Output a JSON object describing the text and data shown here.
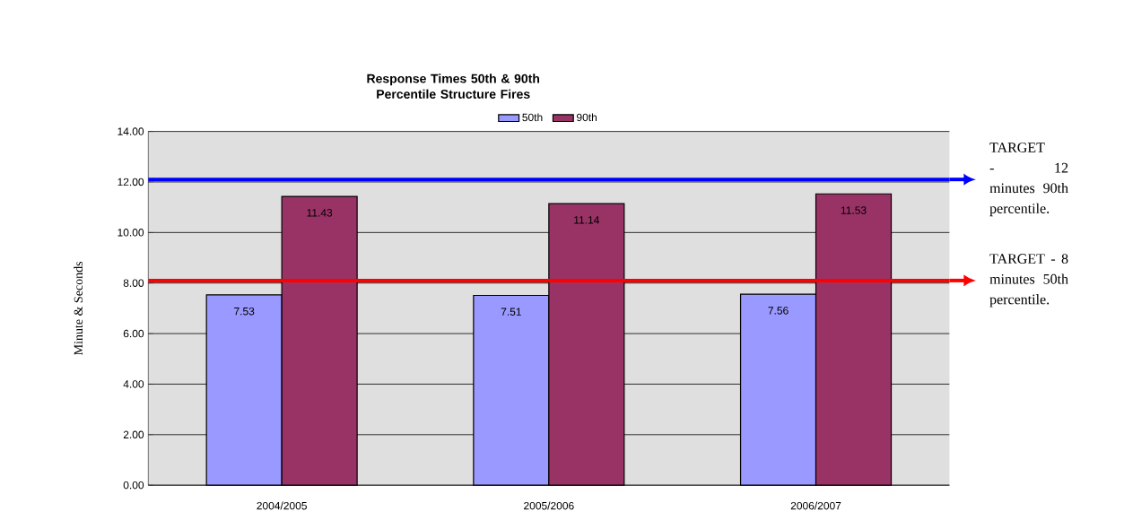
{
  "chart_data": {
    "type": "bar",
    "title": "Response Times 50th & 90th Percentile Structure Fires",
    "ylabel": "Minute & Seconds",
    "categories": [
      "2004/2005",
      "2005/2006",
      "2006/2007"
    ],
    "series": [
      {
        "name": "50th",
        "color": "#9999ff",
        "values": [
          7.53,
          7.51,
          7.56
        ]
      },
      {
        "name": "90th",
        "color": "#993366",
        "values": [
          11.43,
          11.14,
          11.53
        ]
      }
    ],
    "ylim": [
      0,
      14
    ],
    "yticks": [
      {
        "value": 0,
        "label": "0.00"
      },
      {
        "value": 2,
        "label": "2.00"
      },
      {
        "value": 4,
        "label": "4.00"
      },
      {
        "value": 6,
        "label": "6.00"
      },
      {
        "value": 8,
        "label": "8.00"
      },
      {
        "value": 10,
        "label": "10.00"
      },
      {
        "value": 12,
        "label": "12.00"
      },
      {
        "value": 14,
        "label": "14.00"
      }
    ],
    "grid": "y",
    "legend": "top",
    "data_labels": true,
    "ref_lines": [
      {
        "axis": "y",
        "value": 12.1,
        "label": "TARGET - 12 minutes 90th percentile.",
        "color": "#0000ff"
      },
      {
        "axis": "y",
        "value": 8.1,
        "label": "TARGET - 8 minutes 50th percentile.",
        "color": "#ff0000"
      }
    ]
  }
}
